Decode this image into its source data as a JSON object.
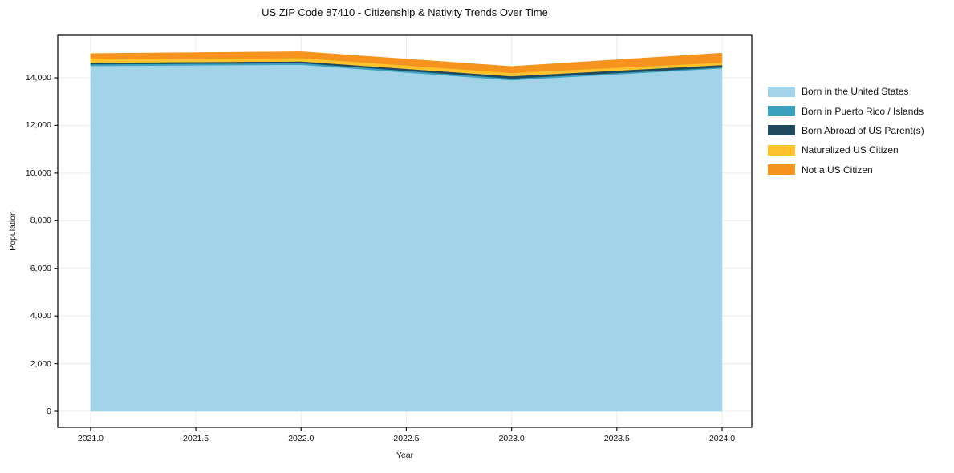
{
  "chart_data": {
    "type": "area",
    "stacked": true,
    "title": "US ZIP Code 87410 - Citizenship & Nativity Trends Over Time",
    "xlabel": "Year",
    "ylabel": "Population",
    "x": [
      2021,
      2022,
      2023,
      2024
    ],
    "series": [
      {
        "name": "Born in the United States",
        "color": "#a3d3e8",
        "values": [
          14500,
          14550,
          13900,
          14400
        ]
      },
      {
        "name": "Born in Puerto Rico / Islands",
        "color": "#3aa2bf",
        "values": [
          70,
          70,
          70,
          40
        ]
      },
      {
        "name": "Born Abroad of US Parent(s)",
        "color": "#1f4a5e",
        "values": [
          70,
          70,
          100,
          100
        ]
      },
      {
        "name": "Naturalized US Citizen",
        "color": "#fcc32d",
        "values": [
          140,
          140,
          140,
          100
        ]
      },
      {
        "name": "Not a US Citizen",
        "color": "#f6921e",
        "values": [
          240,
          270,
          270,
          400
        ]
      }
    ],
    "totals": [
      15020,
      15100,
      14480,
      15040
    ],
    "xlim": [
      2020.844,
      2024.141
    ],
    "ylim": [
      -673,
      15784
    ],
    "xticks": [
      2021.0,
      2021.5,
      2022.0,
      2022.5,
      2023.0,
      2023.5,
      2024.0
    ],
    "xtick_labels": [
      "2021.0",
      "2021.5",
      "2022.0",
      "2022.5",
      "2023.0",
      "2023.5",
      "2024.0"
    ],
    "yticks": [
      0,
      2000,
      4000,
      6000,
      8000,
      10000,
      12000,
      14000
    ],
    "ytick_labels": [
      "0",
      "2,000",
      "4,000",
      "6,000",
      "8,000",
      "10,000",
      "12,000",
      "14,000"
    ],
    "grid": true,
    "grid_color": "#ececec",
    "spine_color": "#111111",
    "legend_position": "right of plot, upper"
  }
}
